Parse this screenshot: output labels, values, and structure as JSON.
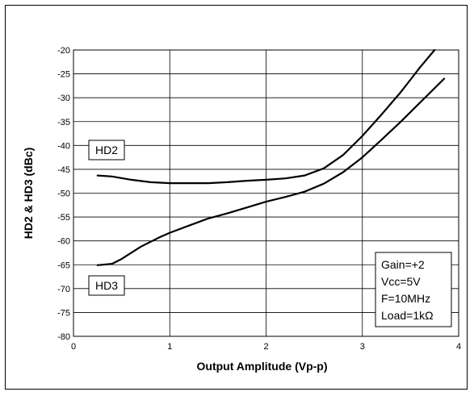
{
  "chart_data": {
    "type": "line",
    "xlabel": "Output Amplitude  (Vp-p)",
    "ylabel": "HD2 & HD3 (dBc)",
    "xlim": [
      0,
      4
    ],
    "ylim": [
      -80,
      -20
    ],
    "x_ticks": [
      "0",
      "1",
      "2",
      "3",
      "4"
    ],
    "y_ticks": [
      "-20",
      "-25",
      "-30",
      "-35",
      "-40",
      "-45",
      "-50",
      "-55",
      "-60",
      "-65",
      "-70",
      "-75",
      "-80"
    ],
    "grid": true,
    "series": [
      {
        "name": "HD2",
        "x": [
          0.25,
          0.4,
          0.6,
          0.8,
          1.0,
          1.2,
          1.4,
          1.6,
          1.8,
          2.0,
          2.2,
          2.4,
          2.6,
          2.8,
          3.0,
          3.2,
          3.4,
          3.6,
          3.75
        ],
        "y": [
          -46.3,
          -46.5,
          -47.2,
          -47.7,
          -47.9,
          -47.9,
          -47.9,
          -47.7,
          -47.4,
          -47.2,
          -46.9,
          -46.3,
          -44.8,
          -42.0,
          -38.0,
          -33.5,
          -28.8,
          -23.6,
          -20.0
        ]
      },
      {
        "name": "HD3",
        "x": [
          0.25,
          0.4,
          0.5,
          0.7,
          0.9,
          1.0,
          1.2,
          1.4,
          1.6,
          1.8,
          2.0,
          2.2,
          2.4,
          2.6,
          2.8,
          3.0,
          3.2,
          3.4,
          3.6,
          3.85
        ],
        "y": [
          -65.1,
          -64.8,
          -63.8,
          -61.2,
          -59.2,
          -58.3,
          -56.8,
          -55.3,
          -54.2,
          -53.0,
          -51.8,
          -50.8,
          -49.7,
          -48.0,
          -45.6,
          -42.5,
          -38.8,
          -35.0,
          -31.0,
          -26.0
        ]
      }
    ],
    "annotations": {
      "hd2_label": "HD2",
      "hd3_label": "HD3",
      "conditions": [
        "Gain=+2",
        "Vcc=5V",
        "F=10MHz",
        "Load=1kΩ"
      ]
    }
  }
}
